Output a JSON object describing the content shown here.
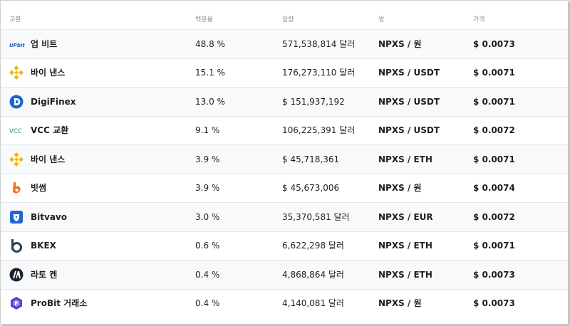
{
  "table": {
    "headers": {
      "exchange": "교환",
      "percent": "백분율",
      "volume": "음량",
      "pair": "쌍",
      "price": "가격"
    },
    "rows": [
      {
        "exchange": "업 비트",
        "icon": "upbit-icon",
        "percent": "48.8 %",
        "volume": "571,538,814 달러",
        "pair": "NPXS / 원",
        "price": "$ 0.0073"
      },
      {
        "exchange": "바이 낸스",
        "icon": "binance-icon",
        "percent": "15.1 %",
        "volume": "176,273,110 달러",
        "pair": "NPXS / USDT",
        "price": "$ 0.0071"
      },
      {
        "exchange": "DigiFinex",
        "icon": "digifinex-icon",
        "percent": "13.0 %",
        "volume": "$ 151,937,192",
        "pair": "NPXS / USDT",
        "price": "$ 0.0071"
      },
      {
        "exchange": "VCC 교환",
        "icon": "vcc-icon",
        "percent": "9.1 %",
        "volume": "106,225,391 달러",
        "pair": "NPXS / USDT",
        "price": "$ 0.0072"
      },
      {
        "exchange": "바이 낸스",
        "icon": "binance-icon",
        "percent": "3.9 %",
        "volume": "$ 45,718,361",
        "pair": "NPXS / ETH",
        "price": "$ 0.0071"
      },
      {
        "exchange": "빗썸",
        "icon": "bithumb-icon",
        "percent": "3.9 %",
        "volume": "$ 45,673,006",
        "pair": "NPXS / 원",
        "price": "$ 0.0074"
      },
      {
        "exchange": "Bitvavo",
        "icon": "bitvavo-icon",
        "percent": "3.0 %",
        "volume": "35,370,581 달러",
        "pair": "NPXS / EUR",
        "price": "$ 0.0072"
      },
      {
        "exchange": "BKEX",
        "icon": "bkex-icon",
        "percent": "0.6 %",
        "volume": "6,622,298 달러",
        "pair": "NPXS / ETH",
        "price": "$ 0.0071"
      },
      {
        "exchange": "라토 켄",
        "icon": "latoken-icon",
        "percent": "0.4 %",
        "volume": "4,868,864 달러",
        "pair": "NPXS / ETH",
        "price": "$ 0.0073"
      },
      {
        "exchange": "ProBit 거래소",
        "icon": "probit-icon",
        "percent": "0.4 %",
        "volume": "4,140,081 달러",
        "pair": "NPXS / 원",
        "price": "$ 0.0073"
      }
    ]
  },
  "colors": {
    "upbit": "#1b5fc1",
    "binance": "#f0b90b",
    "digifinex": "#1a62d6",
    "vcc": "#2a8a8f",
    "bithumb": "#f37021",
    "bitvavo": "#1f66d1",
    "bkex": "#2c3e50",
    "latoken": "#1c2330",
    "probit": "#5b3fd6"
  }
}
